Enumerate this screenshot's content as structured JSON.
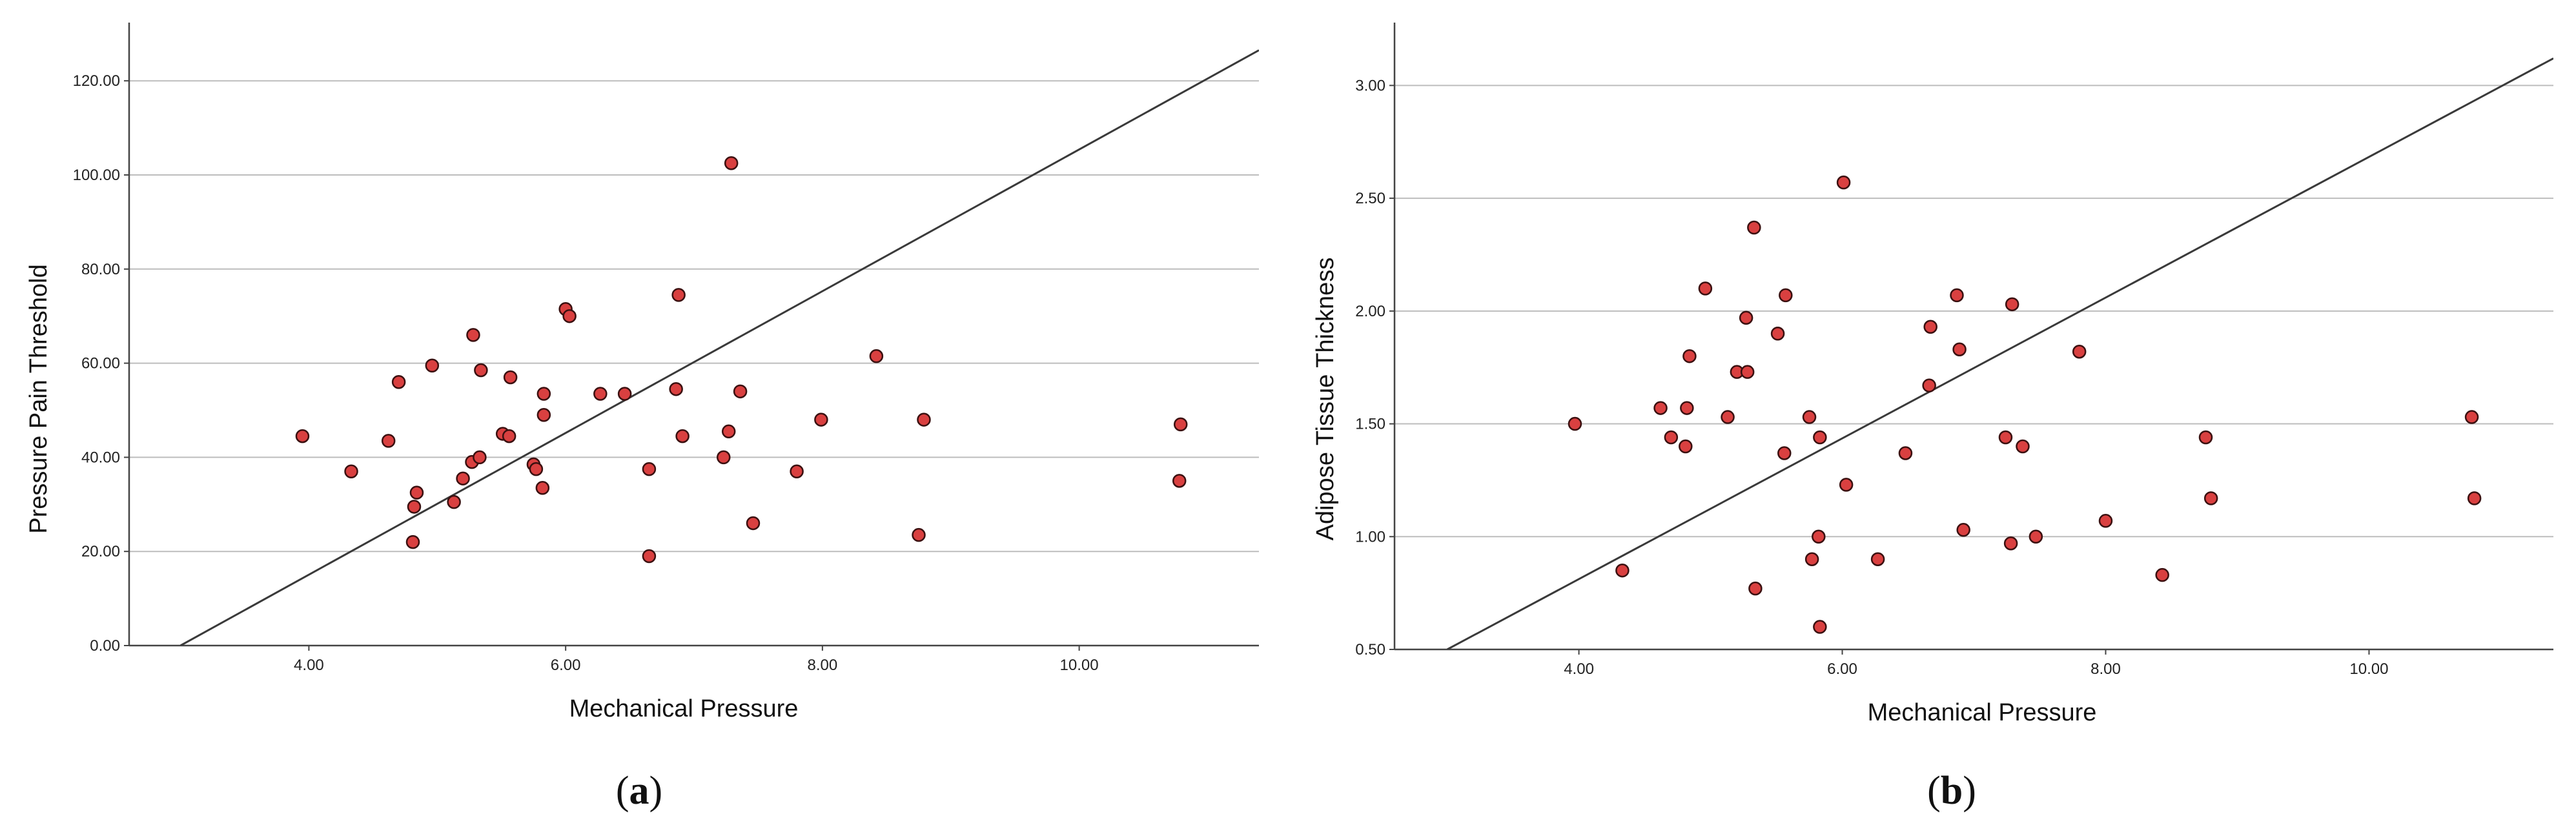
{
  "chart_data": [
    {
      "type": "scatter",
      "panel": "a",
      "xlabel": "Mechanical Pressure",
      "ylabel": "Pressure Pain Threshold",
      "xlim": [
        2.6,
        11.4
      ],
      "ylim": [
        0,
        131
      ],
      "x_ticks": [
        4,
        6,
        8,
        10
      ],
      "x_tick_labels": [
        "4.00",
        "6.00",
        "8.00",
        "10.00"
      ],
      "y_ticks": [
        0,
        20,
        40,
        60,
        80,
        100,
        120
      ],
      "y_tick_labels": [
        "0.00",
        "20.00",
        "40.00",
        "60.00",
        "80.00",
        "100.00",
        "120.00"
      ],
      "grid": "horizontal",
      "fit_line": {
        "x": [
          3.0,
          11.4
        ],
        "y": [
          0.0,
          126.5
        ]
      },
      "points": [
        {
          "x": 3.95,
          "y": 44.5
        },
        {
          "x": 4.33,
          "y": 37.0
        },
        {
          "x": 4.62,
          "y": 43.5
        },
        {
          "x": 4.7,
          "y": 56.0
        },
        {
          "x": 4.81,
          "y": 22.0
        },
        {
          "x": 4.82,
          "y": 29.5
        },
        {
          "x": 4.84,
          "y": 32.5
        },
        {
          "x": 4.96,
          "y": 59.5
        },
        {
          "x": 5.13,
          "y": 30.5
        },
        {
          "x": 5.2,
          "y": 35.5
        },
        {
          "x": 5.27,
          "y": 39.0
        },
        {
          "x": 5.28,
          "y": 66.0
        },
        {
          "x": 5.33,
          "y": 40.0
        },
        {
          "x": 5.34,
          "y": 58.5
        },
        {
          "x": 5.51,
          "y": 45.0
        },
        {
          "x": 5.56,
          "y": 44.5
        },
        {
          "x": 5.57,
          "y": 57.0
        },
        {
          "x": 5.75,
          "y": 38.5
        },
        {
          "x": 5.77,
          "y": 37.5
        },
        {
          "x": 5.82,
          "y": 33.5
        },
        {
          "x": 5.83,
          "y": 49.0
        },
        {
          "x": 5.83,
          "y": 53.5
        },
        {
          "x": 6.0,
          "y": 71.5
        },
        {
          "x": 6.03,
          "y": 70.0
        },
        {
          "x": 6.27,
          "y": 53.5
        },
        {
          "x": 6.46,
          "y": 53.5
        },
        {
          "x": 6.65,
          "y": 19.0
        },
        {
          "x": 6.65,
          "y": 37.5
        },
        {
          "x": 6.86,
          "y": 54.5
        },
        {
          "x": 6.88,
          "y": 74.5
        },
        {
          "x": 6.91,
          "y": 44.5
        },
        {
          "x": 7.23,
          "y": 40.0
        },
        {
          "x": 7.27,
          "y": 45.5
        },
        {
          "x": 7.29,
          "y": 102.5
        },
        {
          "x": 7.36,
          "y": 54.0
        },
        {
          "x": 7.46,
          "y": 26.0
        },
        {
          "x": 7.8,
          "y": 37.0
        },
        {
          "x": 7.99,
          "y": 48.0
        },
        {
          "x": 8.42,
          "y": 61.5
        },
        {
          "x": 8.75,
          "y": 23.5
        },
        {
          "x": 8.79,
          "y": 48.0
        },
        {
          "x": 10.78,
          "y": 35.0
        },
        {
          "x": 10.79,
          "y": 47.0
        }
      ],
      "caption": "(a)"
    },
    {
      "type": "scatter",
      "panel": "b",
      "xlabel": "Mechanical Pressure",
      "ylabel": "Adipose Tissue Thickness",
      "xlim": [
        2.6,
        11.4
      ],
      "ylim": [
        0.5,
        3.25
      ],
      "x_ticks": [
        4,
        6,
        8,
        10
      ],
      "x_tick_labels": [
        "4.00",
        "6.00",
        "8.00",
        "10.00"
      ],
      "y_ticks": [
        0.5,
        1.0,
        1.5,
        2.0,
        2.5,
        3.0
      ],
      "y_tick_labels": [
        "0.50",
        "1.00",
        "1.50",
        "2.00",
        "2.50",
        "3.00"
      ],
      "grid": "horizontal",
      "fit_line": {
        "x": [
          3.0,
          11.4
        ],
        "y": [
          0.5,
          3.12
        ]
      },
      "points": [
        {
          "x": 3.97,
          "y": 1.5
        },
        {
          "x": 4.33,
          "y": 0.85
        },
        {
          "x": 4.62,
          "y": 1.57
        },
        {
          "x": 4.7,
          "y": 1.44
        },
        {
          "x": 4.81,
          "y": 1.4
        },
        {
          "x": 4.82,
          "y": 1.57
        },
        {
          "x": 4.84,
          "y": 1.8
        },
        {
          "x": 4.96,
          "y": 2.1
        },
        {
          "x": 5.13,
          "y": 1.53
        },
        {
          "x": 5.2,
          "y": 1.73
        },
        {
          "x": 5.27,
          "y": 1.97
        },
        {
          "x": 5.28,
          "y": 1.73
        },
        {
          "x": 5.33,
          "y": 2.37
        },
        {
          "x": 5.34,
          "y": 0.77
        },
        {
          "x": 5.51,
          "y": 1.9
        },
        {
          "x": 5.56,
          "y": 1.37
        },
        {
          "x": 5.57,
          "y": 2.07
        },
        {
          "x": 5.75,
          "y": 1.53
        },
        {
          "x": 5.77,
          "y": 0.9
        },
        {
          "x": 5.82,
          "y": 1.0
        },
        {
          "x": 5.83,
          "y": 0.6
        },
        {
          "x": 5.83,
          "y": 1.44
        },
        {
          "x": 6.01,
          "y": 2.57
        },
        {
          "x": 6.03,
          "y": 1.23
        },
        {
          "x": 6.27,
          "y": 0.9
        },
        {
          "x": 6.48,
          "y": 1.37
        },
        {
          "x": 6.66,
          "y": 1.67
        },
        {
          "x": 6.67,
          "y": 1.93
        },
        {
          "x": 6.87,
          "y": 2.07
        },
        {
          "x": 6.89,
          "y": 1.83
        },
        {
          "x": 6.92,
          "y": 1.03
        },
        {
          "x": 7.24,
          "y": 1.44
        },
        {
          "x": 7.28,
          "y": 0.97
        },
        {
          "x": 7.29,
          "y": 2.03
        },
        {
          "x": 7.37,
          "y": 1.4
        },
        {
          "x": 7.47,
          "y": 1.0
        },
        {
          "x": 7.8,
          "y": 1.82
        },
        {
          "x": 8.0,
          "y": 1.07
        },
        {
          "x": 8.43,
          "y": 0.83
        },
        {
          "x": 8.76,
          "y": 1.44
        },
        {
          "x": 8.8,
          "y": 1.17
        },
        {
          "x": 10.78,
          "y": 1.53
        },
        {
          "x": 10.8,
          "y": 1.17
        }
      ],
      "caption": "(b)"
    }
  ],
  "style": {
    "point_fill": "#d94040",
    "point_stroke": "#3a1010",
    "gridline_color": "#bdbdbd",
    "axis_color": "#444444",
    "fit_line_color": "#3a3a3a"
  }
}
